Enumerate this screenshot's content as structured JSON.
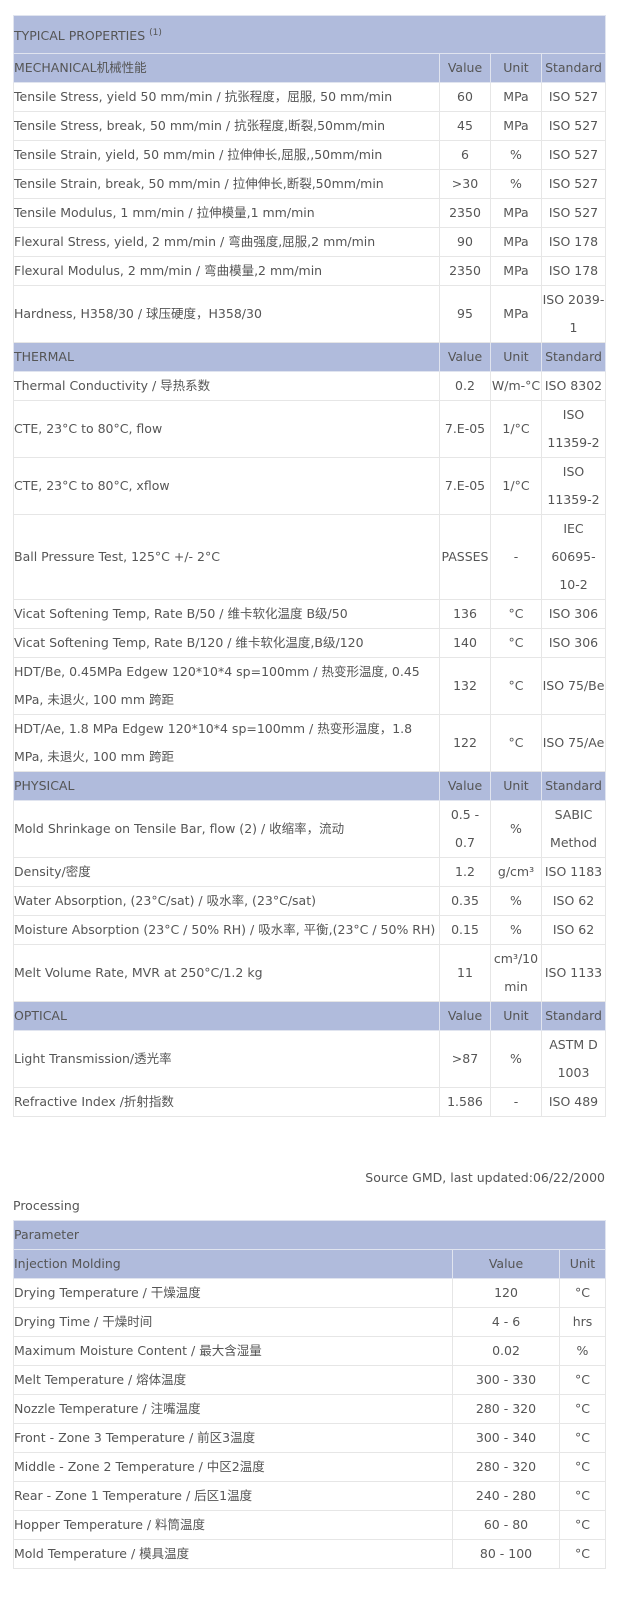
{
  "properties": {
    "title": "TYPICAL PROPERTIES",
    "title_sup": "(1)",
    "sections": [
      {
        "name": "MECHANICAL机械性能",
        "headers": [
          "Value",
          "Unit",
          "Standard"
        ],
        "rows": [
          [
            "Tensile Stress, yield 50 mm/min / 抗张程度，屈服, 50 mm/min",
            "60",
            "MPa",
            "ISO 527"
          ],
          [
            "Tensile Stress, break, 50 mm/min / 抗张程度,断裂,50mm/min",
            "45",
            "MPa",
            "ISO 527"
          ],
          [
            "Tensile Strain, yield, 50 mm/min / 拉伸伸长,屈服,,50mm/min",
            "6",
            "%",
            "ISO 527"
          ],
          [
            "Tensile Strain, break, 50 mm/min / 拉伸伸长,断裂,50mm/min",
            ">30",
            "%",
            "ISO 527"
          ],
          [
            "Tensile Modulus, 1 mm/min / 拉伸模量,1 mm/min",
            "2350",
            "MPa",
            "ISO 527"
          ],
          [
            "Flexural Stress, yield, 2 mm/min / 弯曲强度,屈服,2 mm/min",
            "90",
            "MPa",
            "ISO 178"
          ],
          [
            "Flexural Modulus, 2 mm/min / 弯曲模量,2 mm/min",
            "2350",
            "MPa",
            "ISO 178"
          ],
          [
            "Hardness, H358/30 / 球压硬度，H358/30",
            "95",
            "MPa",
            "ISO 2039-1"
          ]
        ]
      },
      {
        "name": "THERMAL",
        "headers": [
          "Value",
          "Unit",
          "Standard"
        ],
        "rows": [
          [
            "Thermal Conductivity / 导热系数",
            "0.2",
            "W/m-°C",
            "ISO 8302"
          ],
          [
            "CTE, 23°C to 80°C, flow",
            "7.E-05",
            "1/°C",
            "ISO 11359-2"
          ],
          [
            "CTE, 23°C to 80°C, xflow",
            "7.E-05",
            "1/°C",
            "ISO 11359-2"
          ],
          [
            "Ball Pressure Test, 125°C +/- 2°C",
            "PASSES",
            "-",
            "IEC 60695-10-2"
          ],
          [
            "Vicat Softening Temp, Rate B/50 / 维卡软化温度 B级/50",
            "136",
            "°C",
            "ISO 306"
          ],
          [
            "Vicat Softening Temp, Rate B/120 / 维卡软化温度,B级/120",
            "140",
            "°C",
            "ISO 306"
          ],
          [
            "HDT/Be, 0.45MPa Edgew 120*10*4 sp=100mm / 热变形温度, 0.45 MPa, 未退火, 100 mm 跨距",
            "132",
            "°C",
            "ISO 75/Be"
          ],
          [
            "HDT/Ae, 1.8 MPa Edgew 120*10*4 sp=100mm / 热变形温度，1.8 MPa, 未退火, 100 mm 跨距",
            "122",
            "°C",
            "ISO 75/Ae"
          ]
        ]
      },
      {
        "name": "PHYSICAL",
        "headers": [
          "Value",
          "Unit",
          "Standard"
        ],
        "rows": [
          [
            "Mold Shrinkage on Tensile Bar, flow (2) / 收缩率，流动",
            "0.5 - 0.7",
            "%",
            "SABIC Method"
          ],
          [
            "Density/密度",
            "1.2",
            "g/cm³",
            "ISO 1183"
          ],
          [
            "Water Absorption, (23°C/sat) / 吸水率, (23°C/sat)",
            "0.35",
            "%",
            "ISO 62"
          ],
          [
            "Moisture Absorption (23°C / 50% RH) / 吸水率, 平衡,(23°C / 50% RH)",
            "0.15",
            "%",
            "ISO 62"
          ],
          [
            "Melt Volume Rate, MVR at 250°C/1.2 kg",
            "11",
            "cm³/10 min",
            "ISO 1133"
          ]
        ]
      },
      {
        "name": "OPTICAL",
        "headers": [
          "Value",
          "Unit",
          "Standard"
        ],
        "rows": [
          [
            "Light Transmission/透光率",
            ">87",
            "%",
            "ASTM D 1003"
          ],
          [
            "Refractive Index /折射指数",
            "1.586",
            "-",
            "ISO 489"
          ]
        ]
      }
    ],
    "source": "Source GMD, last updated:06/22/2000"
  },
  "processing": {
    "label": "Processing",
    "parameter_header": "Parameter",
    "section": "Injection Molding",
    "headers": [
      "Value",
      "Unit"
    ],
    "rows": [
      [
        "Drying Temperature / 干燥温度",
        "120",
        "°C"
      ],
      [
        "Drying Time / 干燥时间",
        "4 - 6",
        "hrs"
      ],
      [
        "Maximum Moisture Content / 最大含湿量",
        "0.02",
        "%"
      ],
      [
        "Melt Temperature / 熔体温度",
        "300 - 330",
        "°C"
      ],
      [
        "Nozzle Temperature / 注嘴温度",
        "280 - 320",
        "°C"
      ],
      [
        "Front - Zone 3 Temperature / 前区3温度",
        "300 - 340",
        "°C"
      ],
      [
        "Middle - Zone 2 Temperature / 中区2温度",
        "280 - 320",
        "°C"
      ],
      [
        "Rear - Zone 1 Temperature / 后区1温度",
        "240 - 280",
        "°C"
      ],
      [
        "Hopper Temperature / 料筒温度",
        "60 - 80",
        "°C"
      ],
      [
        "Mold Temperature / 模具温度",
        "80 - 100",
        "°C"
      ]
    ]
  }
}
